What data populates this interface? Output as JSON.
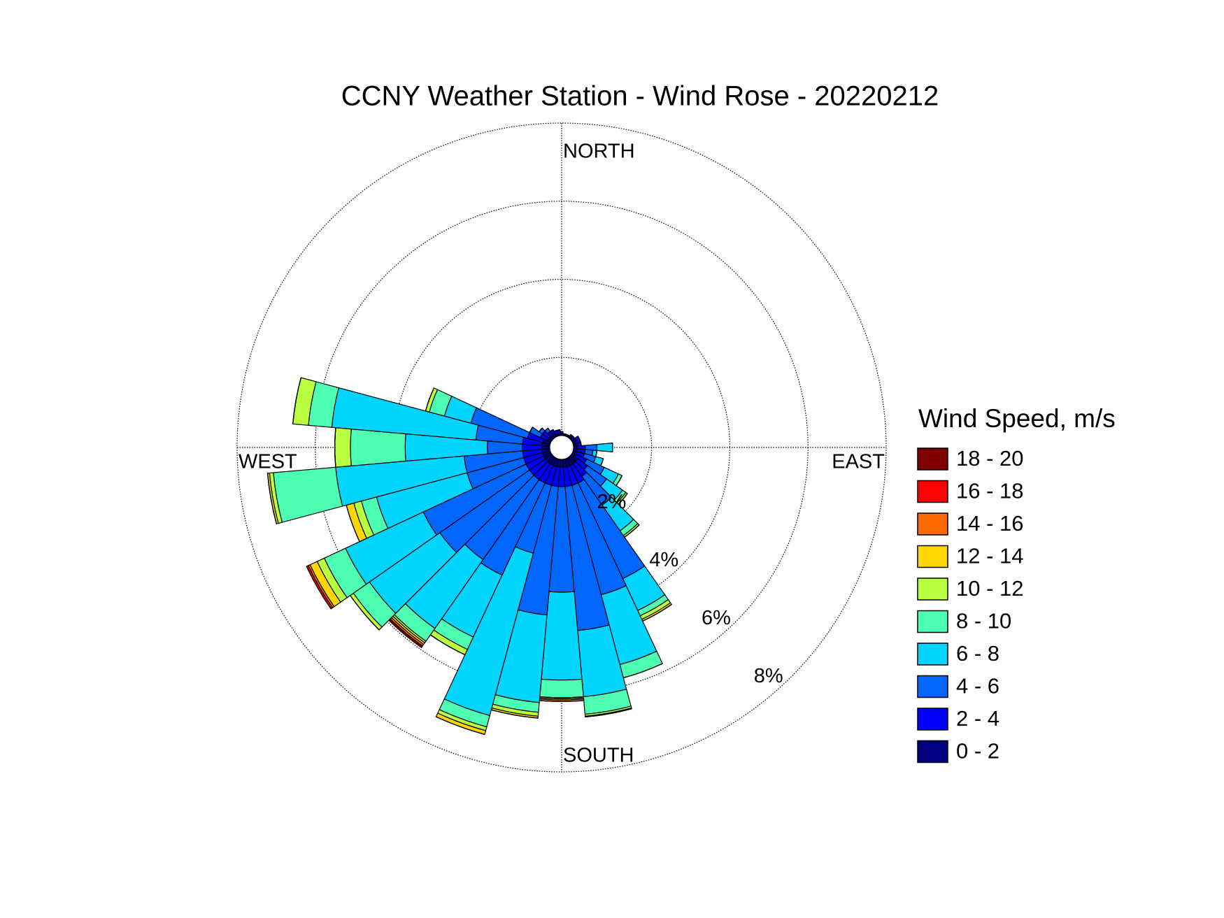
{
  "chart_data": {
    "type": "windrose",
    "title": "CCNY Weather Station - Wind Rose - 20220212",
    "compass": {
      "north": "NORTH",
      "east": "EAST",
      "south": "SOUTH",
      "west": "WEST"
    },
    "legend_title": "Wind Speed, m/s",
    "directions": [
      0,
      10,
      20,
      30,
      40,
      50,
      60,
      70,
      80,
      90,
      100,
      110,
      120,
      130,
      140,
      150,
      160,
      170,
      180,
      190,
      200,
      210,
      220,
      230,
      240,
      250,
      260,
      270,
      280,
      290,
      300,
      310,
      320,
      330,
      340,
      350
    ],
    "rlim": [
      0,
      8
    ],
    "rticks": [
      {
        "value": 2,
        "label": "2%"
      },
      {
        "value": 4,
        "label": "4%"
      },
      {
        "value": 6,
        "label": "6%"
      },
      {
        "value": 8,
        "label": "8%"
      }
    ],
    "grid": true,
    "series": [
      {
        "name": "0 - 2",
        "color": "#000080",
        "values": [
          0.05,
          0.05,
          0.05,
          0.05,
          0.05,
          0.1,
          0.1,
          0.1,
          0.1,
          0.1,
          0.1,
          0.1,
          0.1,
          0.2,
          0.2,
          0.2,
          0.2,
          0.2,
          0.2,
          0.2,
          0.2,
          0.2,
          0.2,
          0.2,
          0.2,
          0.2,
          0.2,
          0.2,
          0.2,
          0.2,
          0.1,
          0.1,
          0.1,
          0.1,
          0.05,
          0.05
        ]
      },
      {
        "name": "2 - 4",
        "color": "#0000ff",
        "values": [
          0.05,
          0,
          0,
          0,
          0.05,
          0,
          0.1,
          0.1,
          0.1,
          0.2,
          0.2,
          0.2,
          0.3,
          0.3,
          0.4,
          0.5,
          0.5,
          0.5,
          0.5,
          0.5,
          0.5,
          0.5,
          0.5,
          0.5,
          0.5,
          0.5,
          0.5,
          0.5,
          0.5,
          0.4,
          0.2,
          0.2,
          0.1,
          0.1,
          0.1,
          0.1
        ]
      },
      {
        "name": "4 - 6",
        "color": "#0066ff",
        "values": [
          0,
          0,
          0,
          0,
          0,
          0,
          0,
          0,
          0,
          0.3,
          0.2,
          0.3,
          0.5,
          0.6,
          0.9,
          2.7,
          2.9,
          3.7,
          2.7,
          3.3,
          1.8,
          2.6,
          2.5,
          2.8,
          2.9,
          1.5,
          1.5,
          0.9,
          1.2,
          1.5,
          0.3,
          0.1,
          0.1,
          0,
          0,
          0
        ]
      },
      {
        "name": "6 - 8",
        "color": "#00d4ff",
        "values": [
          0,
          0,
          0,
          0,
          0,
          0,
          0,
          0,
          0,
          0.4,
          0.1,
          0.2,
          0.4,
          0.5,
          0.8,
          0.9,
          1.85,
          1.7,
          2.25,
          2.25,
          4.3,
          1.75,
          2.15,
          2.2,
          2.2,
          2.4,
          3.3,
          2.1,
          3.7,
          0.7,
          0,
          0,
          0,
          0,
          0,
          0
        ]
      },
      {
        "name": "8 - 10",
        "color": "#4dffb3",
        "values": [
          0,
          0,
          0,
          0,
          0,
          0,
          0,
          0,
          0,
          0,
          0,
          0,
          0.1,
          0.1,
          0.15,
          0.15,
          0.35,
          0.45,
          0.45,
          0.25,
          0.3,
          0.35,
          0.4,
          0.5,
          0.6,
          0.4,
          1.6,
          1.4,
          0.6,
          0.4,
          0,
          0,
          0,
          0,
          0,
          0
        ]
      },
      {
        "name": "10 - 12",
        "color": "#b8ff40",
        "values": [
          0,
          0,
          0,
          0,
          0,
          0,
          0,
          0,
          0,
          0,
          0,
          0,
          0,
          0.05,
          0.05,
          0.1,
          0,
          0.05,
          0.03,
          0.1,
          0.1,
          0.15,
          0.05,
          0.1,
          0.2,
          0.2,
          0.1,
          0.4,
          0.4,
          0.1,
          0,
          0,
          0,
          0,
          0,
          0
        ]
      },
      {
        "name": "12 - 14",
        "color": "#ffd700",
        "values": [
          0,
          0,
          0,
          0,
          0,
          0,
          0,
          0,
          0,
          0,
          0,
          0,
          0,
          0,
          0,
          0.05,
          0,
          0.02,
          0.03,
          0.05,
          0.1,
          0,
          0.05,
          0,
          0.2,
          0.2,
          0.05,
          0,
          0,
          0,
          0,
          0,
          0,
          0,
          0,
          0
        ]
      },
      {
        "name": "14 - 16",
        "color": "#ff6a00",
        "values": [
          0,
          0,
          0,
          0,
          0,
          0,
          0,
          0,
          0,
          0,
          0,
          0,
          0,
          0,
          0,
          0,
          0,
          0,
          0.04,
          0,
          0,
          0,
          0.05,
          0,
          0.05,
          0,
          0,
          0,
          0,
          0,
          0,
          0,
          0,
          0,
          0,
          0
        ]
      },
      {
        "name": "16 - 18",
        "color": "#ff0000",
        "values": [
          0,
          0,
          0,
          0,
          0,
          0,
          0,
          0,
          0,
          0,
          0,
          0,
          0,
          0,
          0,
          0,
          0,
          0,
          0,
          0,
          0,
          0,
          0,
          0,
          0.05,
          0,
          0,
          0,
          0,
          0,
          0,
          0,
          0,
          0,
          0,
          0
        ]
      },
      {
        "name": "18 - 20",
        "color": "#800000",
        "values": [
          0,
          0,
          0,
          0,
          0,
          0,
          0,
          0,
          0,
          0,
          0,
          0,
          0,
          0,
          0,
          0,
          0,
          0,
          0,
          0,
          0,
          0,
          0.05,
          0,
          0,
          0,
          0,
          0,
          0,
          0,
          0,
          0,
          0,
          0,
          0,
          0
        ]
      }
    ]
  }
}
